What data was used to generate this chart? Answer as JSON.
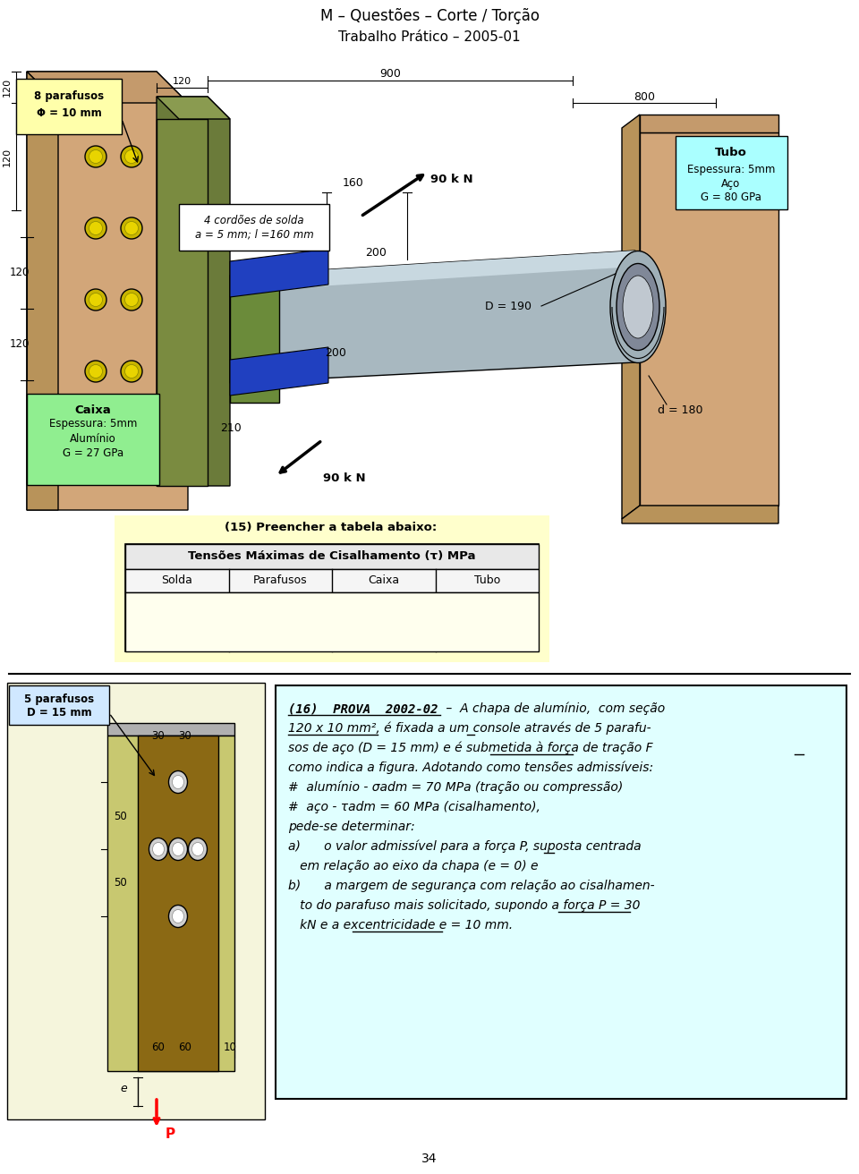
{
  "title_top": "M – Questões – Corte / Torção",
  "subtitle_top": "Trabalho Prático – 2005-01",
  "bg_color": "#ffffff",
  "page_number": "34",
  "table15_title": "(15) Preencher a tabela abaixo:",
  "table15_header": "Tensões Máximas de Cisalhamento (τ) MPa",
  "table15_cols": [
    "Solda",
    "Parafusos",
    "Caixa",
    "Tubo"
  ],
  "wall_left_color": "#C49A6C",
  "wall_face_color": "#D2A679",
  "wall_dark_color": "#B8935A",
  "plate_color": "#6B7B3A",
  "plate_face_color": "#7A8B40",
  "plate_top_color": "#8A9B50",
  "bolt_outer": "#C8B400",
  "bolt_inner": "#E8D400",
  "yellow_box": "#ffffaa",
  "tube_color": "#A8B8C0",
  "tube_highlight": "#C8D8E0",
  "tube_end1": "#A0B0B8",
  "tube_end2": "#808898",
  "tube_end3": "#C0C8D0",
  "joint_color": "#6B8B3A",
  "weld_color": "#2040C0",
  "caixa_color": "#90EE90",
  "cyan_box": "#aaffff",
  "text_box_color": "#e0ffff",
  "console_plate_color": "#c8c870",
  "console_brown": "#8B6914",
  "console_grey": "#b0b0b0",
  "blue_label_color": "#d0e8ff",
  "table_yellow": "#ffffcc",
  "table_header_bg": "#e8e8e8",
  "table_col_bg": "#f5f5f5",
  "table_data_bg": "#ffffee"
}
